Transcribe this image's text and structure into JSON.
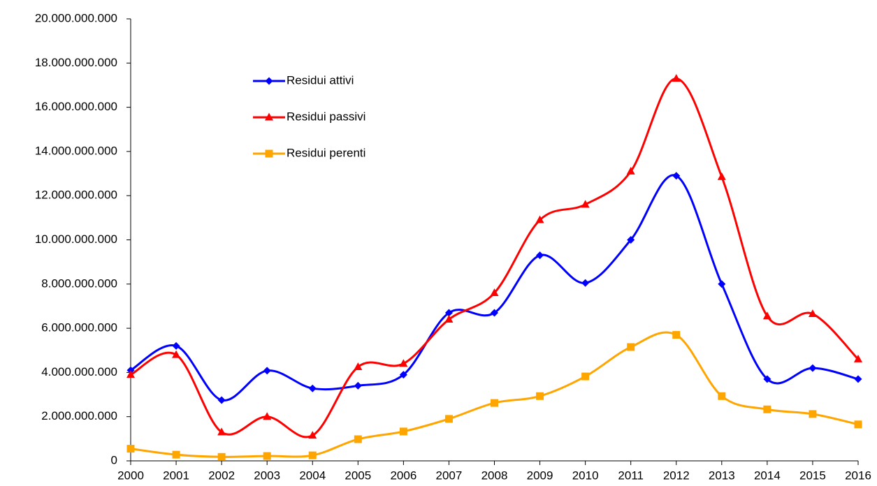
{
  "chart_data": {
    "type": "line",
    "smooth": true,
    "grid": false,
    "legend": "top-left",
    "categories": [
      "2000",
      "2001",
      "2002",
      "2003",
      "2004",
      "2005",
      "2006",
      "2007",
      "2008",
      "2009",
      "2010",
      "2011",
      "2012",
      "2013",
      "2014",
      "2015",
      "2016"
    ],
    "ylim": [
      0,
      20000000000
    ],
    "yticks": [
      0,
      {
        "value": 2000000000,
        "label": "2.000.000.000"
      },
      {
        "value": 4000000000,
        "label": "4.000.000.000"
      },
      {
        "value": 6000000000,
        "label": "6.000.000.000"
      },
      {
        "value": 8000000000,
        "label": "8.000.000.000"
      },
      {
        "value": 10000000000,
        "label": "10.000.000.000"
      },
      {
        "value": 12000000000,
        "label": "12.000.000.000"
      },
      {
        "value": 14000000000,
        "label": "14.000.000.000"
      },
      {
        "value": 16000000000,
        "label": "16.000.000.000"
      },
      {
        "value": 18000000000,
        "label": "18.000.000.000"
      },
      {
        "value": 20000000000,
        "label": "20.000.000.000"
      }
    ],
    "series": [
      {
        "name": "Residui attivi",
        "color": "#0000ff",
        "marker": "diamond",
        "values": [
          4100000000,
          5200000000,
          2750000000,
          4080000000,
          3280000000,
          3400000000,
          3900000000,
          6700000000,
          6700000000,
          9300000000,
          8050000000,
          10000000000,
          12900000000,
          8000000000,
          3700000000,
          4200000000,
          3700000000
        ]
      },
      {
        "name": "Residui passivi",
        "color": "#ff0000",
        "marker": "triangle",
        "values": [
          3900000000,
          4800000000,
          1300000000,
          2000000000,
          1150000000,
          4250000000,
          4400000000,
          6400000000,
          7600000000,
          10900000000,
          11600000000,
          13100000000,
          17300000000,
          12850000000,
          6550000000,
          6650000000,
          4600000000
        ]
      },
      {
        "name": "Residui perenti",
        "color": "#ffa500",
        "marker": "square",
        "values": [
          550000000,
          280000000,
          180000000,
          220000000,
          250000000,
          980000000,
          1330000000,
          1900000000,
          2620000000,
          2930000000,
          3820000000,
          5150000000,
          5700000000,
          2930000000,
          2330000000,
          2120000000,
          1650000000
        ]
      }
    ]
  }
}
